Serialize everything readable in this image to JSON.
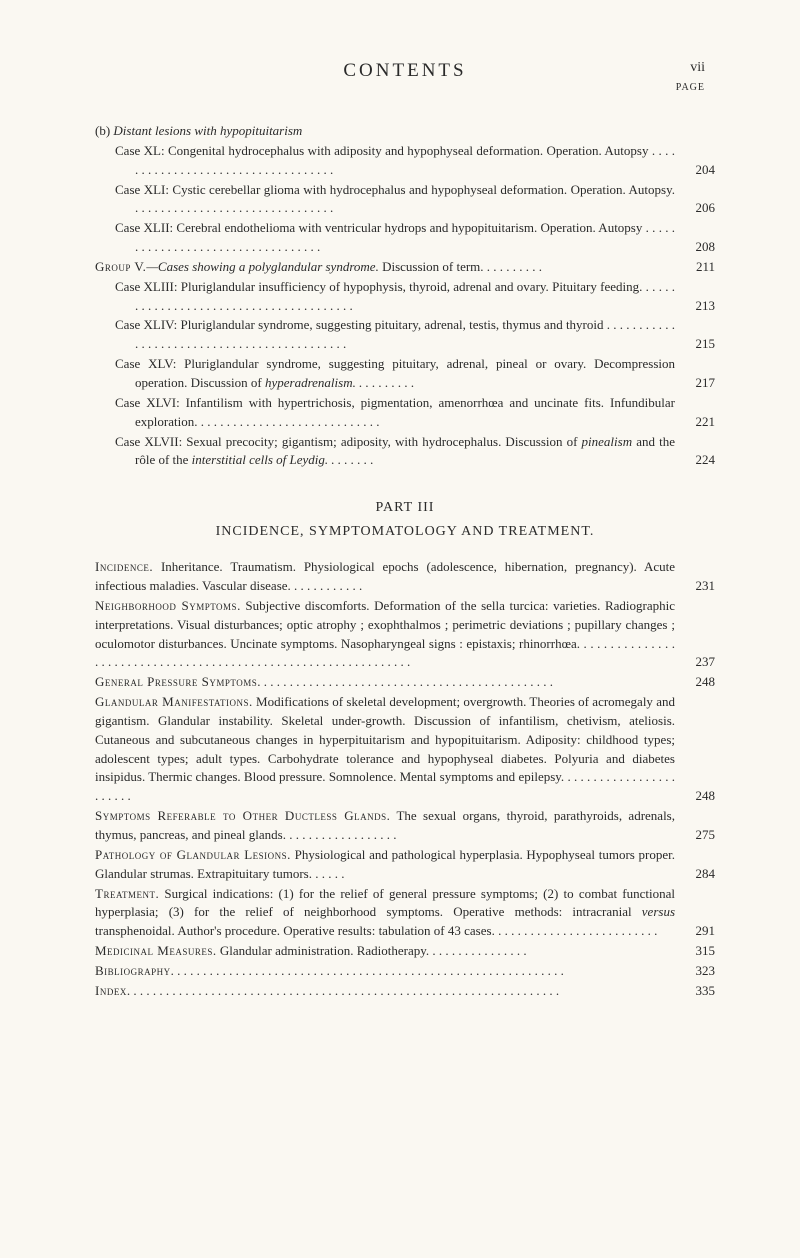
{
  "header": {
    "title": "CONTENTS",
    "roman": "vii",
    "pageLabel": "PAGE"
  },
  "part3": {
    "label": "PART III",
    "title": "INCIDENCE, SYMPTOMATOLOGY AND TREATMENT."
  },
  "entries1": [
    {
      "level": 1,
      "prefix": "(b) ",
      "italic": "Distant lesions with hypopituitarism",
      "rest": "",
      "page": ""
    },
    {
      "level": 2,
      "text": "Case XL: Congenital hydrocephalus with adiposity and hypophyseal deformation. Operation. Autopsy . . . . . . . . . . . . . . . . . . . . . . . . . . . . . . . . . . .",
      "page": "204"
    },
    {
      "level": 2,
      "text": "Case XLI: Cystic cerebellar glioma with hydrocephalus and hypophyseal deformation. Operation. Autopsy. . . . . . . . . . . . . . . . . . . . . . . . . . . . . . . .",
      "page": "206"
    },
    {
      "level": 2,
      "text": "Case XLII: Cerebral endothelioma with ventricular hydrops and hypopituitarism. Operation. Autopsy . . . . . . . . . . . . . . . . . . . . . . . . . . . . . . . . . .",
      "page": "208"
    },
    {
      "level": 1,
      "smallcaps": "Group V.",
      "italic_mid": "—Cases showing a polyglandular syndrome.",
      "rest": " Discussion of term. . . . . . . . . .",
      "page": "211"
    },
    {
      "level": 2,
      "text": "Case XLIII: Pluriglandular insufficiency of hypophysis, thyroid, adrenal and ovary. Pituitary feeding. . . . . . . . . . . . . . . . . . . . . . . . . . . . . . . . . . . . . . . .",
      "page": "213"
    },
    {
      "level": 2,
      "text": "Case XLIV: Pluriglandular syndrome, suggesting pituitary, adrenal, testis, thymus and thyroid . . . . . . . . . . . . . . . . . . . . . . . . . . . . . . . . . . . . . . . . . . . .",
      "page": "215"
    },
    {
      "level": 2,
      "text": "Case XLV: Pluriglandular syndrome, suggesting pituitary, adrenal, pineal or ovary. Decompression operation. Discussion of ",
      "italic_tail": "hyperadrenalism. . . . . . . . . .",
      "page": "217"
    },
    {
      "level": 2,
      "text": "Case XLVI: Infantilism with hypertrichosis, pigmentation, amenorrhœa and uncinate fits. Infundibular exploration. . . . . . . . . . . . . . . . . . . . . . . . . . . . .",
      "page": "221"
    },
    {
      "level": 2,
      "text": "Case XLVII: Sexual precocity; gigantism; adiposity, with hydrocephalus. Discussion of ",
      "italic_mid2": "pinealism",
      "text_mid": " and the rôle of the ",
      "italic_tail2": "interstitial cells of Leydig. . . . . . . .",
      "page": "224"
    }
  ],
  "entries2": [
    {
      "level": 0,
      "smallcaps": "Incidence.",
      "rest": " Inheritance. Traumatism. Physiological epochs (adolescence, hibernation, pregnancy). Acute infectious maladies. Vascular disease. . . . . . . . . . . .",
      "page": "231"
    },
    {
      "level": 0,
      "smallcaps": "Neighborhood Symptoms.",
      "rest": " Subjective discomforts. Deformation of the sella turcica: varieties. Radiographic interpretations. Visual disturbances; optic atrophy ; exophthalmos ; perimetric deviations ; pupillary changes ; oculomotor disturbances. Uncinate symptoms. Nasopharyngeal signs : epistaxis; rhinorrhœa. . . . . . . . . . . . . . . . . . . . . . . . . . . . . . . . . . . . . . . . . . . . . . . . . . . . . . . . . . . . . . . .",
      "page": "237"
    },
    {
      "level": 0,
      "smallcaps": "General Pressure Symptoms",
      "rest": ". . . . . . . . . . . . . . . . . . . . . . . . . . . . . . . . . . . . . . . . . . . . . .",
      "page": "248"
    },
    {
      "level": 0,
      "smallcaps": "Glandular Manifestations.",
      "rest": " Modifications of skeletal development; overgrowth. Theories of acromegaly and gigantism. Glandular instability. Skeletal under-growth. Discussion of infantilism, chetivism, ateliosis. Cutaneous and subcutaneous changes in hyperpituitarism and hypopituitarism. Adiposity: childhood types; adolescent types; adult types. Carbohydrate tolerance and hypophyseal diabetes. Polyuria and diabetes insipidus. Thermic changes. Blood pressure. Somnolence. Mental symptoms and epilepsy. . . . . . . . . . . . . . . . . . . . . . . .",
      "page": "248"
    },
    {
      "level": 0,
      "smallcaps": "Symptoms Referable to Other Ductless Glands.",
      "rest": " The sexual organs, thyroid, parathyroids, adrenals, thymus, pancreas, and pineal glands. . . . . . . . . . . . . . . . . .",
      "page": "275"
    },
    {
      "level": 0,
      "smallcaps": "Pathology of Glandular Lesions.",
      "rest": " Physiological and pathological hyperplasia. Hypophyseal tumors proper. Glandular strumas. Extrapituitary tumors. . . . . .",
      "page": "284"
    },
    {
      "level": 0,
      "smallcaps": "Treatment.",
      "rest": " Surgical indications: (1) for the relief of general pressure symptoms; (2) to combat functional hyperplasia; (3) for the relief of neighborhood symptoms. Operative methods: intracranial ",
      "italic_mid3": "versus",
      "rest2": " transphenoidal. Author's procedure. Operative results: tabulation of 43 cases. . . . . . . . . . . . . . . . . . . . . . . . . .",
      "page": "291"
    },
    {
      "level": 0,
      "smallcaps": "Medicinal Measures.",
      "rest": " Glandular administration. Radiotherapy. . . . . . . . . . . . . . . .",
      "page": "315"
    },
    {
      "level": 0,
      "smallcaps": "Bibliography",
      "rest": ". . . . . . . . . . . . . . . . . . . . . . . . . . . . . . . . . . . . . . . . . . . . . . . . . . . . . . . . . . . . .",
      "page": "323"
    },
    {
      "level": 0,
      "smallcaps": "Index",
      "rest": ". . . . . . . . . . . . . . . . . . . . . . . . . . . . . . . . . . . . . . . . . . . . . . . . . . . . . . . . . . . . . . . . . . .",
      "page": "335"
    }
  ]
}
